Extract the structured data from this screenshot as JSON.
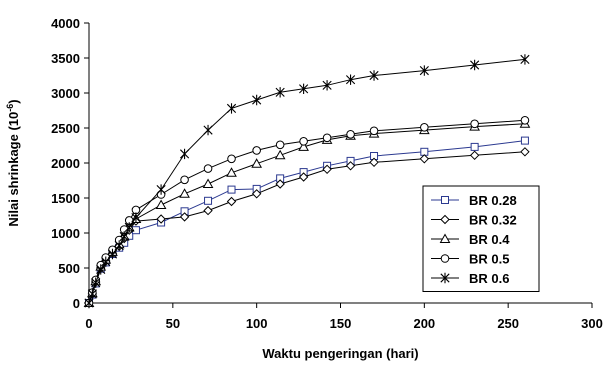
{
  "chart_data": {
    "type": "line",
    "xlabel": "Waktu pengeringan (hari)",
    "ylabel_base": "Nilai shrinkage (10",
    "ylabel_exp": "-6",
    "ylabel_tail": ")",
    "xlim": [
      0,
      300
    ],
    "ylim": [
      0,
      4000
    ],
    "xticks": [
      0,
      50,
      100,
      150,
      200,
      250,
      300
    ],
    "yticks": [
      0,
      500,
      1000,
      1500,
      2000,
      2500,
      3000,
      3500,
      4000
    ],
    "grid": false,
    "legend_position": "right",
    "series": [
      {
        "name": "BR 0.28",
        "marker": "square",
        "color": "#2b3990",
        "x": [
          0,
          2,
          4,
          7,
          10,
          14,
          18,
          21,
          24,
          28,
          43,
          57,
          71,
          85,
          100,
          114,
          128,
          142,
          156,
          170,
          200,
          230,
          260
        ],
        "y": [
          0,
          120,
          280,
          490,
          580,
          700,
          790,
          860,
          960,
          1040,
          1150,
          1310,
          1460,
          1620,
          1630,
          1780,
          1870,
          1960,
          2030,
          2100,
          2160,
          2230,
          2320
        ]
      },
      {
        "name": "BR 0.32",
        "marker": "diamond",
        "color": "#000000",
        "x": [
          0,
          2,
          4,
          7,
          10,
          14,
          18,
          21,
          24,
          28,
          43,
          57,
          71,
          85,
          100,
          114,
          128,
          142,
          156,
          170,
          200,
          230,
          260
        ],
        "y": [
          0,
          130,
          300,
          500,
          600,
          710,
          810,
          920,
          1040,
          1170,
          1200,
          1230,
          1320,
          1450,
          1560,
          1700,
          1800,
          1910,
          1960,
          2010,
          2060,
          2110,
          2160
        ]
      },
      {
        "name": "BR 0.4",
        "marker": "triangle",
        "color": "#000000",
        "x": [
          0,
          2,
          4,
          7,
          10,
          14,
          18,
          21,
          24,
          28,
          43,
          57,
          71,
          85,
          100,
          114,
          128,
          142,
          156,
          170,
          200,
          230,
          260
        ],
        "y": [
          0,
          140,
          310,
          520,
          620,
          730,
          840,
          950,
          1080,
          1200,
          1400,
          1560,
          1700,
          1860,
          1990,
          2110,
          2230,
          2330,
          2390,
          2420,
          2470,
          2520,
          2560
        ]
      },
      {
        "name": "BR 0.5",
        "marker": "circle",
        "color": "#000000",
        "x": [
          0,
          2,
          4,
          7,
          10,
          14,
          18,
          21,
          24,
          28,
          43,
          57,
          71,
          85,
          100,
          114,
          128,
          142,
          156,
          170,
          200,
          230,
          260
        ],
        "y": [
          0,
          150,
          330,
          540,
          650,
          760,
          900,
          1050,
          1180,
          1330,
          1550,
          1760,
          1920,
          2060,
          2180,
          2260,
          2310,
          2360,
          2410,
          2460,
          2510,
          2560,
          2610
        ]
      },
      {
        "name": "BR 0.6",
        "marker": "star",
        "color": "#000000",
        "x": [
          0,
          2,
          4,
          7,
          10,
          14,
          18,
          21,
          24,
          28,
          43,
          57,
          71,
          85,
          100,
          114,
          128,
          142,
          156,
          170,
          200,
          230,
          260
        ],
        "y": [
          0,
          130,
          290,
          480,
          590,
          700,
          820,
          950,
          1080,
          1220,
          1620,
          2130,
          2470,
          2780,
          2900,
          3010,
          3060,
          3110,
          3190,
          3250,
          3320,
          3400,
          3480
        ]
      }
    ]
  }
}
